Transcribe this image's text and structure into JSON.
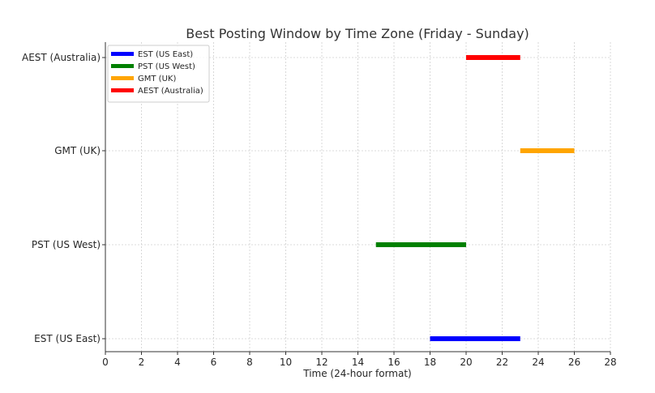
{
  "chart_data": {
    "type": "bar",
    "orientation": "horizontal-range",
    "title": "Best Posting Window by Time Zone (Friday - Sunday)",
    "xlabel": "Time (24-hour format)",
    "ylabel": "",
    "xlim": [
      0,
      28
    ],
    "x_ticks": [
      0,
      2,
      4,
      6,
      8,
      10,
      12,
      14,
      16,
      18,
      20,
      22,
      24,
      26,
      28
    ],
    "grid": true,
    "legend_position": "top-left",
    "categories": [
      "EST (US East)",
      "PST (US West)",
      "GMT (UK)",
      "AEST (Australia)"
    ],
    "series": [
      {
        "name": "EST (US East)",
        "start": 18,
        "end": 23,
        "color": "#0000ff"
      },
      {
        "name": "PST (US West)",
        "start": 15,
        "end": 20,
        "color": "#008000"
      },
      {
        "name": "GMT (UK)",
        "start": 23,
        "end": 26,
        "color": "#ffa500"
      },
      {
        "name": "AEST (Australia)",
        "start": 20,
        "end": 23,
        "color": "#ff0000"
      }
    ]
  }
}
